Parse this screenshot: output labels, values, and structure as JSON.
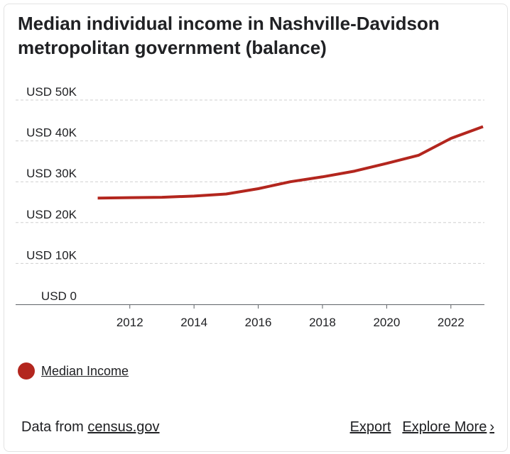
{
  "chart_data": {
    "type": "line",
    "title": "Median individual income in Nashville-Davidson metropolitan government (balance)",
    "xlabel": "",
    "ylabel": "",
    "x": [
      2011,
      2012,
      2013,
      2014,
      2015,
      2016,
      2017,
      2018,
      2019,
      2020,
      2021,
      2022,
      2023
    ],
    "xticks": [
      2012,
      2014,
      2016,
      2018,
      2020,
      2022
    ],
    "xtick_labels": [
      "2012",
      "2014",
      "2016",
      "2018",
      "2020",
      "2022"
    ],
    "yticks": [
      0,
      10000,
      20000,
      30000,
      40000,
      50000
    ],
    "ytick_labels": [
      "USD 0",
      "USD 10K",
      "USD 20K",
      "USD 30K",
      "USD 40K",
      "USD 50K"
    ],
    "ylim": [
      0,
      50000
    ],
    "grid": true,
    "legend_position": "bottom-left",
    "series": [
      {
        "name": "Median Income",
        "color": "#b3261e",
        "values": [
          26000,
          26100,
          26200,
          26500,
          27000,
          28300,
          30000,
          31200,
          32600,
          34500,
          36500,
          40600,
          43500
        ]
      }
    ]
  },
  "legend": {
    "items": [
      {
        "label": "Median Income",
        "color": "#b3261e"
      }
    ]
  },
  "footer": {
    "source_prefix": "Data from",
    "source_link": "census.gov",
    "export_label": "Export",
    "explore_label": "Explore More",
    "explore_icon": "chevron-right-icon"
  }
}
